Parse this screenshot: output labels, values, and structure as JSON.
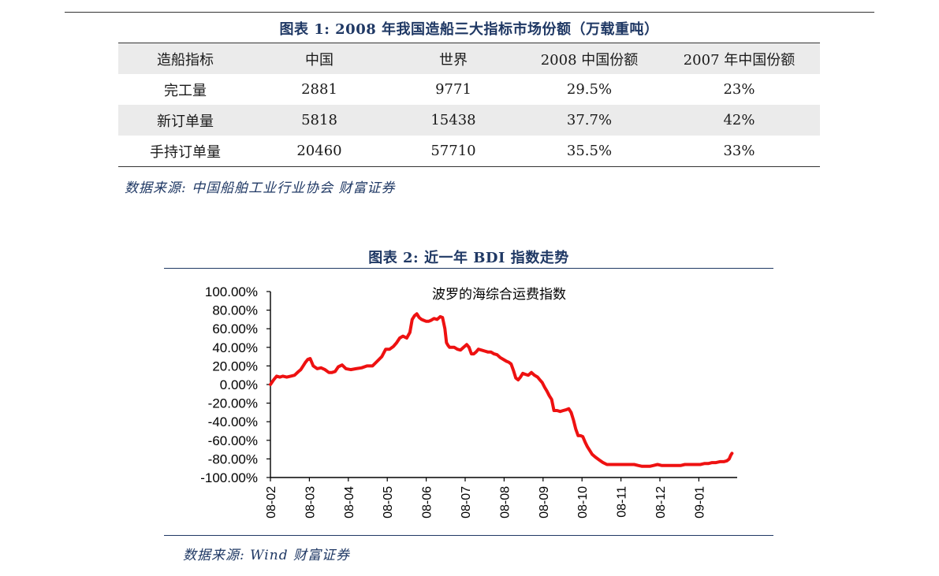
{
  "figure1": {
    "title": "图表 1:  2008 年我国造船三大指标市场份额（万载重吨）",
    "headers": [
      "造船指标",
      "中国",
      "世界",
      "2008 中国份额",
      "2007 年中国份额"
    ],
    "rows": [
      [
        "完工量",
        "2881",
        "9771",
        "29.5%",
        "23%"
      ],
      [
        "新订单量",
        "5818",
        "15438",
        "37.7%",
        "42%"
      ],
      [
        "手持订单量",
        "20460",
        "57710",
        "35.5%",
        "33%"
      ]
    ],
    "source": "数据来源:  中国船舶工业行业协会    财富证券"
  },
  "figure2": {
    "title": "图表 2:  近一年 BDI 指数走势",
    "source": "数据来源:  Wind    财富证券"
  },
  "chart_data": {
    "type": "line",
    "title": "波罗的海综合运费指数",
    "xlabel": "",
    "ylabel": "",
    "ylim": [
      -100,
      100
    ],
    "yticks": [
      100,
      80,
      60,
      40,
      20,
      0,
      -20,
      -40,
      -60,
      -80,
      -100
    ],
    "ytick_labels": [
      "100.00%",
      "80.00%",
      "60.00%",
      "40.00%",
      "20.00%",
      "0.00%",
      "-20.00%",
      "-40.00%",
      "-60.00%",
      "-80.00%",
      "-100.00%"
    ],
    "xtick_labels": [
      "08-02",
      "08-03",
      "08-04",
      "08-05",
      "08-06",
      "08-07",
      "08-08",
      "08-09",
      "08-10",
      "08-11",
      "08-12",
      "09-01"
    ],
    "x_range": [
      0,
      11.85
    ],
    "grid": false,
    "series_color": "#ee1111",
    "series": [
      {
        "name": "",
        "x": [
          0,
          0.08,
          0.16,
          0.24,
          0.32,
          0.42,
          0.52,
          0.62,
          0.72,
          0.78,
          0.84,
          0.9,
          0.96,
          1.02,
          1.1,
          1.2,
          1.3,
          1.4,
          1.5,
          1.58,
          1.66,
          1.74,
          1.84,
          1.94,
          2.06,
          2.2,
          2.34,
          2.48,
          2.62,
          2.74,
          2.86,
          2.96,
          3.06,
          3.16,
          3.24,
          3.32,
          3.4,
          3.5,
          3.58,
          3.64,
          3.7,
          3.76,
          3.82,
          3.88,
          3.94,
          4.0,
          4.06,
          4.12,
          4.2,
          4.28,
          4.36,
          4.42,
          4.48,
          4.52,
          4.56,
          4.6,
          4.66,
          4.72,
          4.8,
          4.88,
          4.96,
          5.04,
          5.1,
          5.16,
          5.22,
          5.28,
          5.34,
          5.42,
          5.5,
          5.58,
          5.66,
          5.74,
          5.82,
          5.9,
          5.98,
          6.06,
          6.12,
          6.18,
          6.24,
          6.3,
          6.36,
          6.42,
          6.48,
          6.54,
          6.62,
          6.7,
          6.78,
          6.86,
          6.92,
          6.98,
          7.04,
          7.1,
          7.16,
          7.22,
          7.28,
          7.36,
          7.44,
          7.52,
          7.6,
          7.66,
          7.72,
          7.78,
          7.84,
          7.9,
          7.96,
          8.02,
          8.08,
          8.14,
          8.2,
          8.26,
          8.34,
          8.44,
          8.54,
          8.64,
          8.74,
          8.84,
          8.94,
          9.04,
          9.14,
          9.24,
          9.34,
          9.44,
          9.54,
          9.64,
          9.74,
          9.84,
          9.94,
          10.04,
          10.14,
          10.24,
          10.34,
          10.44,
          10.54,
          10.64,
          10.74,
          10.84,
          10.94,
          11.04,
          11.14,
          11.24,
          11.34,
          11.44,
          11.54,
          11.64,
          11.72,
          11.78,
          11.82,
          11.85
        ],
        "y": [
          0,
          5,
          9,
          8,
          9,
          8,
          9,
          10,
          14,
          16,
          20,
          24,
          27,
          28,
          20,
          17,
          18,
          16,
          13,
          13,
          14,
          19,
          21,
          17,
          16,
          17,
          18,
          20,
          20,
          25,
          30,
          38,
          38,
          41,
          45,
          50,
          52,
          50,
          56,
          70,
          74,
          76,
          72,
          70,
          69,
          68,
          68,
          69,
          71,
          70,
          73,
          72,
          60,
          45,
          42,
          40,
          40,
          40,
          38,
          37,
          40,
          43,
          40,
          33,
          33,
          35,
          38,
          37,
          36,
          35,
          35,
          33,
          32,
          29,
          27,
          25,
          24,
          22,
          15,
          7,
          5,
          8,
          12,
          11,
          10,
          13,
          10,
          8,
          5,
          2,
          -3,
          -7,
          -12,
          -16,
          -28,
          -28,
          -29,
          -28,
          -27,
          -26,
          -30,
          -38,
          -48,
          -55,
          -55,
          -56,
          -62,
          -67,
          -71,
          -75,
          -78,
          -81,
          -84,
          -86,
          -86,
          -86,
          -86,
          -86,
          -86,
          -86,
          -86,
          -87,
          -88,
          -88,
          -88,
          -87,
          -86,
          -87,
          -87,
          -87,
          -87,
          -87,
          -87,
          -86,
          -86,
          -86,
          -86,
          -86,
          -85,
          -85,
          -84,
          -84,
          -83,
          -83,
          -82,
          -80,
          -76,
          -74
        ]
      }
    ]
  }
}
